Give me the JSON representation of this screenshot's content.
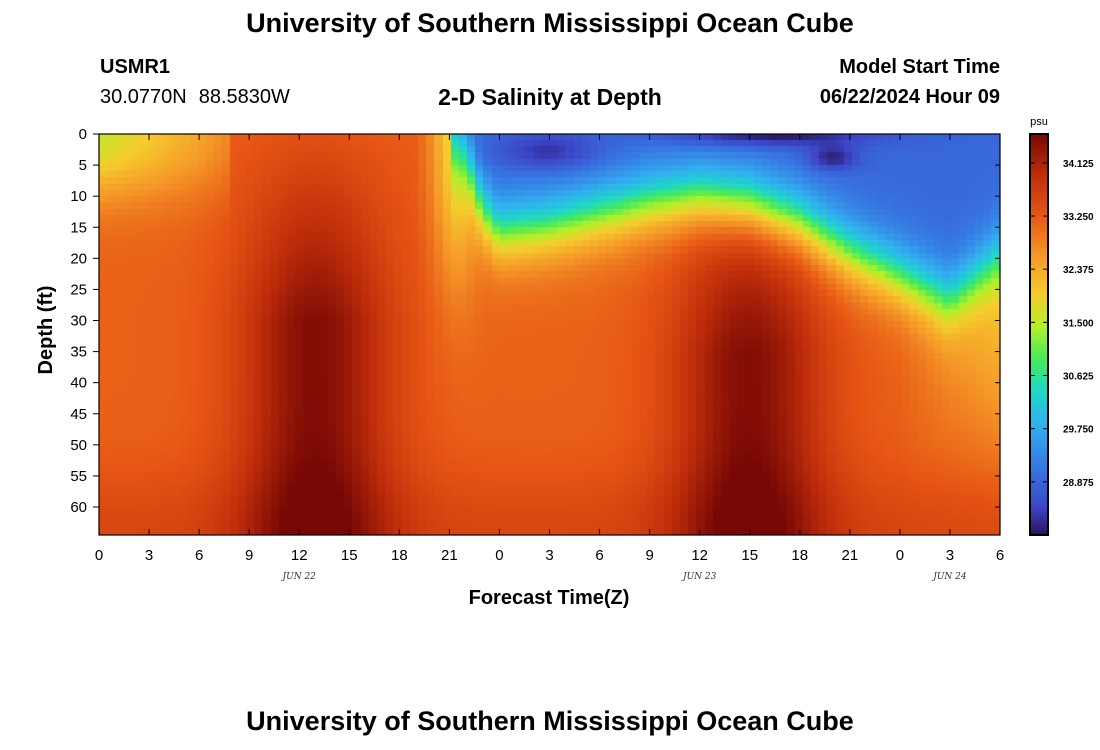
{
  "header": {
    "title": "University of Southern Mississippi Ocean Cube",
    "station": "USMR1",
    "latitude": "30.0770N",
    "longitude": "88.5830W",
    "subtitle": "2-D Salinity at Depth",
    "model_start_label": "Model Start Time",
    "model_start_value": "06/22/2024 Hour 09"
  },
  "footer": {
    "title": "University of Southern Mississippi Ocean Cube"
  },
  "chart_data": {
    "type": "heatmap",
    "title": "2-D Salinity at Depth",
    "xlabel": "Forecast Time(Z)",
    "ylabel": "Depth (ft)",
    "x_tick_labels": [
      "0",
      "3",
      "6",
      "9",
      "12",
      "15",
      "18",
      "21",
      "0",
      "3",
      "6",
      "9",
      "12",
      "15",
      "18",
      "21",
      "0",
      "3",
      "6"
    ],
    "x_range_hours": [
      0,
      54
    ],
    "date_labels": [
      {
        "label": "JUN 22",
        "hour": 12
      },
      {
        "label": "JUN 23",
        "hour": 36
      },
      {
        "label": "JUN 24",
        "hour": 51
      }
    ],
    "y_tick_labels": [
      "0",
      "5",
      "10",
      "15",
      "20",
      "25",
      "30",
      "35",
      "40",
      "45",
      "50",
      "55",
      "60"
    ],
    "y_range_ft": [
      0,
      64.5
    ],
    "y_inverted": true,
    "colorbar": {
      "unit": "psu",
      "labels": [
        "34.125",
        "33.250",
        "32.375",
        "31.500",
        "30.625",
        "29.750",
        "28.875"
      ],
      "range": [
        28.0,
        34.6
      ]
    },
    "fresh_layer_depth_ft": {
      "hours": [
        0,
        21,
        22,
        23,
        24,
        27,
        30,
        33,
        36,
        39,
        42,
        45,
        48,
        51,
        54
      ],
      "values": [
        0,
        0,
        3,
        12,
        16,
        15,
        13,
        11,
        10,
        11,
        14,
        19,
        23,
        27,
        20
      ]
    },
    "surface_salinity_min_psu": 28.0,
    "deep_salinity_max_psu": 34.6
  }
}
